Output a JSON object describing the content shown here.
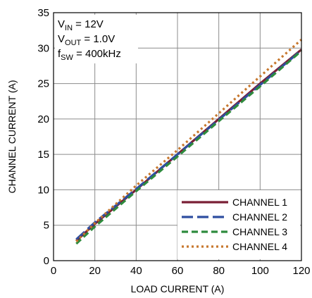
{
  "chart_data": {
    "type": "line",
    "title": "",
    "xlabel": "LOAD CURRENT (A)",
    "ylabel": "CHANNEL CURRENT (A)",
    "xlim": [
      0,
      120
    ],
    "ylim": [
      0,
      35
    ],
    "x_ticks": [
      "0",
      "20",
      "40",
      "60",
      "80",
      "100",
      "120"
    ],
    "y_ticks": [
      "0",
      "5",
      "10",
      "15",
      "20",
      "25",
      "30",
      "35"
    ],
    "grid": true,
    "legend_position": "bottom-right",
    "conditions": [
      {
        "main": "V",
        "sub": "IN",
        "rest": " = 12V"
      },
      {
        "main": "V",
        "sub": "OUT",
        "rest": " = 1.0V"
      },
      {
        "main": "f",
        "sub": "SW",
        "rest": " = 400kHz"
      }
    ],
    "series": [
      {
        "name": "CHANNEL 1",
        "color": "#7a1f35",
        "dash": "solid",
        "x": [
          11,
          20,
          40,
          60,
          80,
          100,
          120
        ],
        "y": [
          2.8,
          5.2,
          10.0,
          15.0,
          20.0,
          25.0,
          29.8
        ]
      },
      {
        "name": "CHANNEL 2",
        "color": "#2e4ea0",
        "dash": "long-dash",
        "x": [
          11,
          20,
          40,
          60,
          80,
          100,
          120
        ],
        "y": [
          3.0,
          5.4,
          10.1,
          15.0,
          19.9,
          24.8,
          29.7
        ]
      },
      {
        "name": "CHANNEL 3",
        "color": "#2e8b3e",
        "dash": "dash",
        "x": [
          11,
          20,
          40,
          60,
          80,
          100,
          120
        ],
        "y": [
          2.4,
          4.8,
          9.8,
          14.7,
          19.7,
          24.6,
          29.6
        ]
      },
      {
        "name": "CHANNEL 4",
        "color": "#c7782e",
        "dash": "dot",
        "x": [
          11,
          20,
          40,
          60,
          80,
          100,
          120
        ],
        "y": [
          2.7,
          5.3,
          10.6,
          15.6,
          20.8,
          26.0,
          31.2
        ]
      }
    ]
  }
}
